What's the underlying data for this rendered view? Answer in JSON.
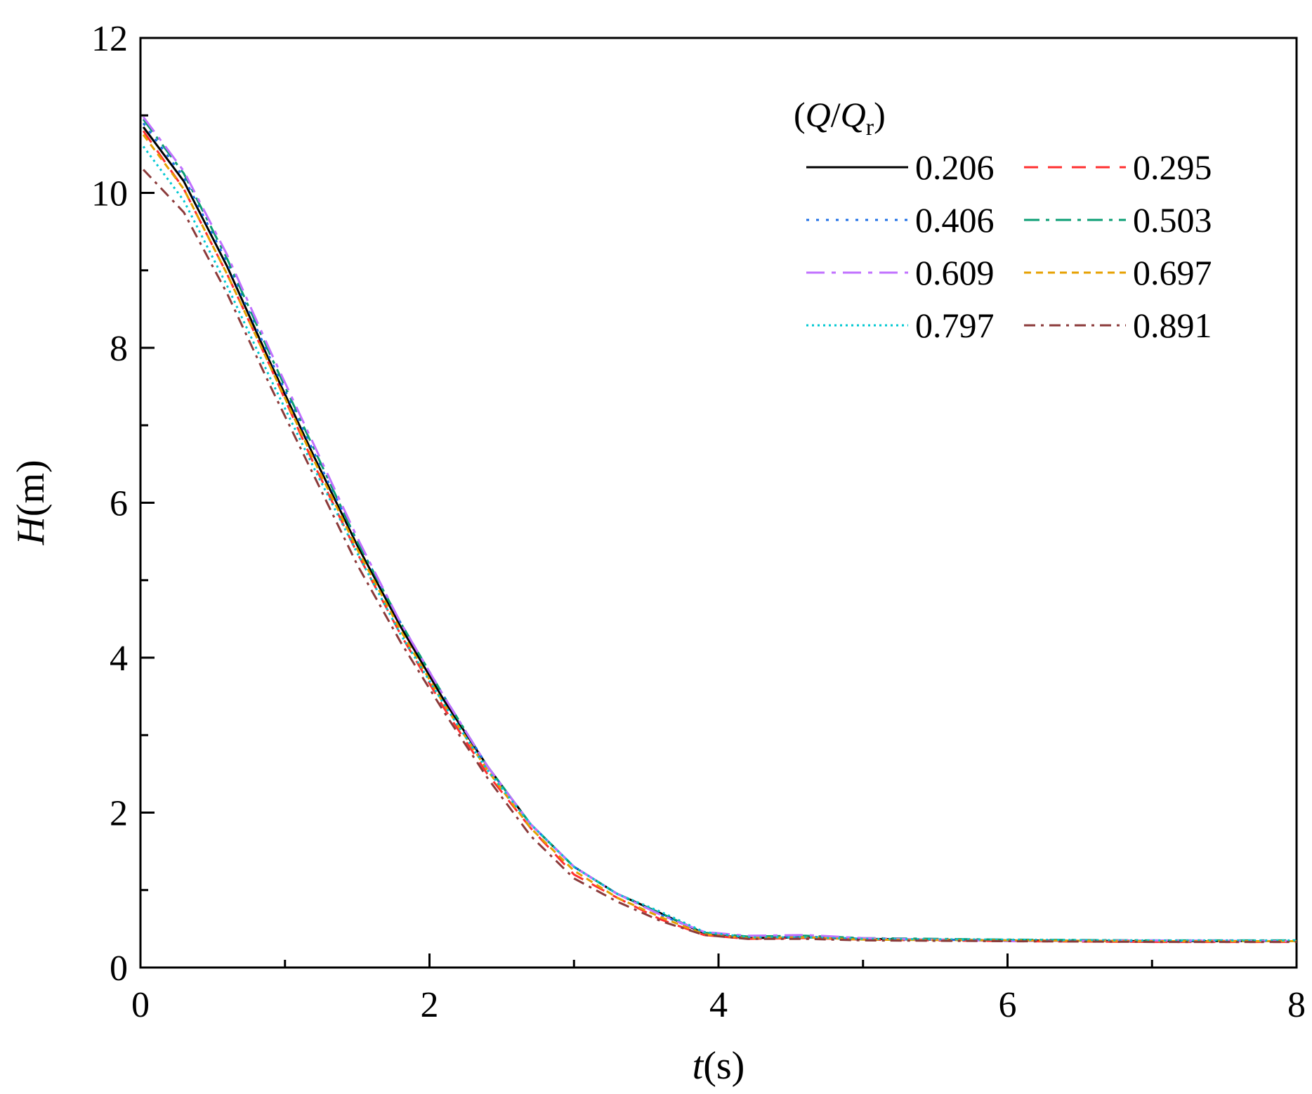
{
  "chart_data": {
    "type": "line",
    "title": "",
    "xlabel": {
      "var": "t",
      "unit": "(s)"
    },
    "ylabel": {
      "var": "H",
      "unit": "(m)"
    },
    "xlim": [
      0,
      8
    ],
    "ylim": [
      0,
      12
    ],
    "xticks": [
      "0",
      "2",
      "4",
      "6",
      "8"
    ],
    "yticks": [
      "0",
      "2",
      "4",
      "6",
      "8",
      "10",
      "12"
    ],
    "grid": false,
    "legend": {
      "placement": "top-right",
      "title": {
        "open": "(",
        "var1": "Q",
        "slash": "/",
        "var2": "Q",
        "sub": "r",
        "close": ")"
      }
    },
    "series": [
      {
        "name": "0.206",
        "color": "#000000",
        "dash": "solid",
        "points": [
          [
            0.02,
            10.85
          ],
          [
            0.3,
            10.15
          ],
          [
            0.6,
            9.05
          ],
          [
            0.9,
            7.8
          ],
          [
            1.2,
            6.6
          ],
          [
            1.5,
            5.45
          ],
          [
            1.8,
            4.4
          ],
          [
            2.1,
            3.45
          ],
          [
            2.4,
            2.6
          ],
          [
            2.7,
            1.85
          ],
          [
            3.0,
            1.3
          ],
          [
            3.3,
            0.95
          ],
          [
            3.6,
            0.7
          ],
          [
            3.9,
            0.44
          ],
          [
            4.2,
            0.38
          ],
          [
            4.6,
            0.39
          ],
          [
            5.0,
            0.37
          ],
          [
            6.0,
            0.35
          ],
          [
            7.0,
            0.34
          ],
          [
            8.0,
            0.34
          ]
        ]
      },
      {
        "name": "0.295",
        "color": "#ff3030",
        "dash": "dashed",
        "points": [
          [
            0.02,
            10.8
          ],
          [
            0.3,
            10.05
          ],
          [
            0.6,
            8.95
          ],
          [
            0.9,
            7.75
          ],
          [
            1.2,
            6.5
          ],
          [
            1.5,
            5.35
          ],
          [
            1.8,
            4.3
          ],
          [
            2.1,
            3.35
          ],
          [
            2.4,
            2.5
          ],
          [
            2.7,
            1.8
          ],
          [
            3.0,
            1.2
          ],
          [
            3.3,
            0.9
          ],
          [
            3.6,
            0.62
          ],
          [
            3.9,
            0.42
          ],
          [
            4.2,
            0.37
          ],
          [
            4.6,
            0.38
          ],
          [
            5.0,
            0.36
          ],
          [
            6.0,
            0.34
          ],
          [
            7.0,
            0.33
          ],
          [
            8.0,
            0.33
          ]
        ]
      },
      {
        "name": "0.406",
        "color": "#1e6fe6",
        "dash": "dotted",
        "points": [
          [
            0.02,
            10.9
          ],
          [
            0.3,
            10.2
          ],
          [
            0.6,
            9.1
          ],
          [
            0.9,
            7.85
          ],
          [
            1.2,
            6.65
          ],
          [
            1.5,
            5.5
          ],
          [
            1.8,
            4.45
          ],
          [
            2.1,
            3.5
          ],
          [
            2.4,
            2.6
          ],
          [
            2.7,
            1.85
          ],
          [
            3.0,
            1.3
          ],
          [
            3.3,
            0.95
          ],
          [
            3.6,
            0.68
          ],
          [
            3.9,
            0.45
          ],
          [
            4.2,
            0.39
          ],
          [
            4.6,
            0.4
          ],
          [
            5.0,
            0.37
          ],
          [
            6.0,
            0.35
          ],
          [
            7.0,
            0.34
          ],
          [
            8.0,
            0.34
          ]
        ]
      },
      {
        "name": "0.503",
        "color": "#0a9e73",
        "dash": "dashdot",
        "points": [
          [
            0.02,
            10.95
          ],
          [
            0.3,
            10.25
          ],
          [
            0.6,
            9.15
          ],
          [
            0.9,
            7.9
          ],
          [
            1.2,
            6.7
          ],
          [
            1.5,
            5.5
          ],
          [
            1.8,
            4.45
          ],
          [
            2.1,
            3.5
          ],
          [
            2.4,
            2.6
          ],
          [
            2.7,
            1.85
          ],
          [
            3.0,
            1.3
          ],
          [
            3.3,
            0.95
          ],
          [
            3.6,
            0.7
          ],
          [
            3.9,
            0.45
          ],
          [
            4.2,
            0.4
          ],
          [
            4.6,
            0.41
          ],
          [
            5.0,
            0.38
          ],
          [
            6.0,
            0.36
          ],
          [
            7.0,
            0.35
          ],
          [
            8.0,
            0.35
          ]
        ]
      },
      {
        "name": "0.609",
        "color": "#c070ff",
        "dash": "dashdotlong",
        "points": [
          [
            0.02,
            10.98
          ],
          [
            0.3,
            10.28
          ],
          [
            0.6,
            9.2
          ],
          [
            0.9,
            7.95
          ],
          [
            1.2,
            6.75
          ],
          [
            1.5,
            5.55
          ],
          [
            1.8,
            4.45
          ],
          [
            2.1,
            3.5
          ],
          [
            2.4,
            2.6
          ],
          [
            2.7,
            1.85
          ],
          [
            3.0,
            1.3
          ],
          [
            3.3,
            0.95
          ],
          [
            3.6,
            0.68
          ],
          [
            3.9,
            0.46
          ],
          [
            4.2,
            0.41
          ],
          [
            4.6,
            0.42
          ],
          [
            5.0,
            0.38
          ],
          [
            6.0,
            0.34
          ],
          [
            7.0,
            0.35
          ],
          [
            8.0,
            0.34
          ]
        ]
      },
      {
        "name": "0.697",
        "color": "#e6a000",
        "dash": "shortdash",
        "points": [
          [
            0.02,
            10.75
          ],
          [
            0.3,
            10.05
          ],
          [
            0.6,
            8.95
          ],
          [
            0.9,
            7.75
          ],
          [
            1.2,
            6.55
          ],
          [
            1.5,
            5.4
          ],
          [
            1.8,
            4.35
          ],
          [
            2.1,
            3.4
          ],
          [
            2.4,
            2.55
          ],
          [
            2.7,
            1.8
          ],
          [
            3.0,
            1.25
          ],
          [
            3.3,
            0.9
          ],
          [
            3.6,
            0.65
          ],
          [
            3.9,
            0.43
          ],
          [
            4.2,
            0.38
          ],
          [
            4.6,
            0.39
          ],
          [
            5.0,
            0.36
          ],
          [
            6.0,
            0.35
          ],
          [
            7.0,
            0.34
          ],
          [
            8.0,
            0.34
          ]
        ]
      },
      {
        "name": "0.797",
        "color": "#00c8d2",
        "dash": "densedot",
        "points": [
          [
            0.02,
            10.6
          ],
          [
            0.3,
            9.9
          ],
          [
            0.6,
            8.8
          ],
          [
            0.9,
            7.6
          ],
          [
            1.2,
            6.45
          ],
          [
            1.5,
            5.35
          ],
          [
            1.8,
            4.3
          ],
          [
            2.1,
            3.4
          ],
          [
            2.4,
            2.55
          ],
          [
            2.7,
            1.85
          ],
          [
            3.0,
            1.3
          ],
          [
            3.3,
            0.95
          ],
          [
            3.6,
            0.72
          ],
          [
            3.9,
            0.46
          ],
          [
            4.2,
            0.39
          ],
          [
            4.6,
            0.39
          ],
          [
            5.0,
            0.37
          ],
          [
            6.0,
            0.36
          ],
          [
            7.0,
            0.35
          ],
          [
            8.0,
            0.35
          ]
        ]
      },
      {
        "name": "0.891",
        "color": "#8b3a3a",
        "dash": "dashdot2",
        "points": [
          [
            0.02,
            10.3
          ],
          [
            0.3,
            9.75
          ],
          [
            0.6,
            8.7
          ],
          [
            0.9,
            7.5
          ],
          [
            1.2,
            6.35
          ],
          [
            1.5,
            5.2
          ],
          [
            1.8,
            4.2
          ],
          [
            2.1,
            3.3
          ],
          [
            2.4,
            2.45
          ],
          [
            2.7,
            1.7
          ],
          [
            3.0,
            1.15
          ],
          [
            3.3,
            0.85
          ],
          [
            3.6,
            0.6
          ],
          [
            3.9,
            0.42
          ],
          [
            4.2,
            0.37
          ],
          [
            4.6,
            0.37
          ],
          [
            5.0,
            0.35
          ],
          [
            6.0,
            0.34
          ],
          [
            7.0,
            0.33
          ],
          [
            8.0,
            0.33
          ]
        ]
      }
    ]
  }
}
